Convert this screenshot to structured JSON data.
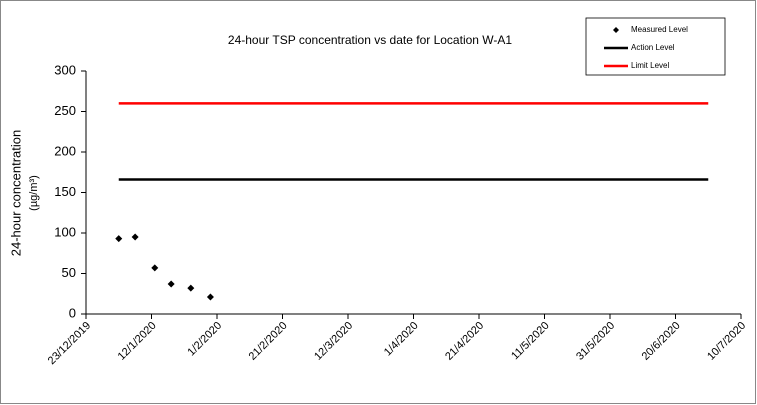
{
  "chart_data": {
    "type": "line",
    "title": "24-hour TSP concentration vs date for Location W-A1",
    "ylabel": [
      "24-hour concentration",
      "(µg/m³)"
    ],
    "xlim": [
      "2019-12-23",
      "2020-07-10"
    ],
    "xticks": [
      {
        "value": "2019-12-23",
        "label": "23/12/2019"
      },
      {
        "value": "2020-01-12",
        "label": "12/1/2020"
      },
      {
        "value": "2020-02-01",
        "label": "1/2/2020"
      },
      {
        "value": "2020-02-21",
        "label": "21/2/2020"
      },
      {
        "value": "2020-03-12",
        "label": "12/3/2020"
      },
      {
        "value": "2020-04-01",
        "label": "1/4/2020"
      },
      {
        "value": "2020-04-21",
        "label": "21/4/2020"
      },
      {
        "value": "2020-05-11",
        "label": "11/5/2020"
      },
      {
        "value": "2020-05-31",
        "label": "31/5/2020"
      },
      {
        "value": "2020-06-20",
        "label": "20/6/2020"
      },
      {
        "value": "2020-07-10",
        "label": "10/7/2020"
      }
    ],
    "ylim": [
      0,
      300
    ],
    "yticks": [
      0,
      50,
      100,
      150,
      200,
      250,
      300
    ],
    "legend": "top-right",
    "series": [
      {
        "name": "Measured Level",
        "color": "#000000",
        "mode": "markers",
        "x": [
          "2020-01-02",
          "2020-01-07",
          "2020-01-13",
          "2020-01-18",
          "2020-01-24",
          "2020-01-30"
        ],
        "values": [
          93,
          95,
          57,
          37,
          32,
          21
        ]
      },
      {
        "name": "Action Level",
        "color": "#000000",
        "mode": "lines",
        "x": [
          "2020-01-02",
          "2020-06-30"
        ],
        "values": [
          166,
          166
        ]
      },
      {
        "name": "Limit Level",
        "color": "#ff0000",
        "mode": "lines",
        "x": [
          "2020-01-02",
          "2020-06-30"
        ],
        "values": [
          260,
          260
        ]
      }
    ]
  }
}
